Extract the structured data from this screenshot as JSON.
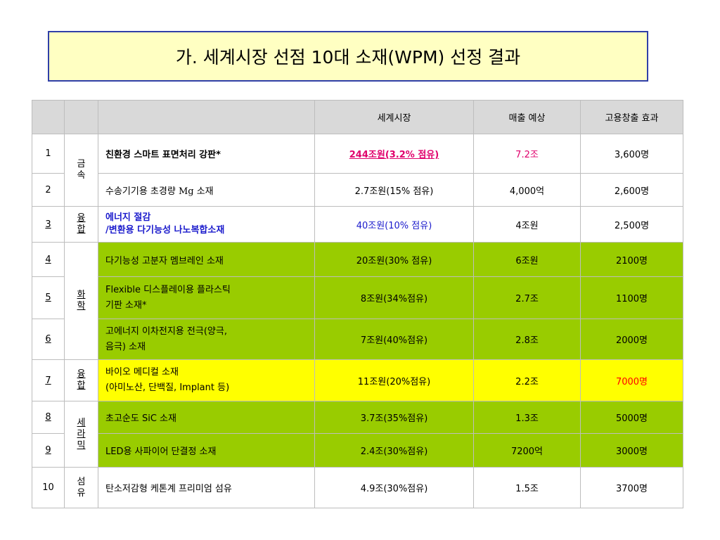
{
  "title": "가. 세계시장 선점 10대 소재(WPM) 선정 결과",
  "headers": [
    "",
    "",
    "",
    "세계시장",
    "매출 예상",
    "고용창출 효과"
  ],
  "rows": [
    {
      "num": "1",
      "cat": "금\n속",
      "name": "친환경 스마트 표면처리 강판*",
      "market": "244조원(3.2% 점유)",
      "sales": "7.2조",
      "jobs": "3,600명"
    },
    {
      "num": "2",
      "name": "수송기기용 초경량 Mg 소재",
      "market": "2.7조원(15% 점유)",
      "sales": "4,000억",
      "jobs": "2,600명"
    },
    {
      "num": "3",
      "cat": "융\n합",
      "name": "에너지 절감\n/변환용 다기능성 나노복합소재",
      "market": "40조원(10% 점유)",
      "sales": "4조원",
      "jobs": "2,500명"
    },
    {
      "num": "4",
      "cat": "화\n학",
      "name": "다기능성 고분자 멤브레인 소재",
      "market": "20조원(30% 점유)",
      "sales": "6조원",
      "jobs": "2100명"
    },
    {
      "num": "5",
      "name": "Flexible 디스플레이용 플라스틱\n기판 소재*",
      "market": "8조원(34%점유)",
      "sales": "2.7조",
      "jobs": "1100명"
    },
    {
      "num": "6",
      "name": "고에너지 이차전지용 전극(양극,\n음극) 소재",
      "market": "7조원(40%점유)",
      "sales": "2.8조",
      "jobs": "2000명"
    },
    {
      "num": "7",
      "cat": "융\n합",
      "name": "바이오 메디컬 소재\n(아미노산, 단백질, Implant 등)",
      "market": "11조원(20%점유)",
      "sales": "2.2조",
      "jobs": "7000명"
    },
    {
      "num": "8",
      "cat": "세\n라\n믹",
      "name": "초고순도 SiC 소재",
      "market": "3.7조(35%점유)",
      "sales": "1.3조",
      "jobs": "5000명"
    },
    {
      "num": "9",
      "name": "LED용 사파이어 단결정 소재",
      "market": "2.4조(30%점유)",
      "sales": "7200억",
      "jobs": "3000명"
    },
    {
      "num": "10",
      "cat": "섬\n유",
      "name": "탄소저감형 케톤계 프리미엄 섬유",
      "market": "4.9조(30%점유)",
      "sales": "1.5조",
      "jobs": "3700명"
    }
  ],
  "colors": {
    "title_bg": "#ffffc2",
    "title_border": "#2f3fa8",
    "header_bg": "#d9d9d9",
    "green": "#99cc00",
    "yellow": "#ffff00",
    "pink": "#e0006c",
    "blue": "#1a1acc",
    "red": "#ff0000"
  }
}
